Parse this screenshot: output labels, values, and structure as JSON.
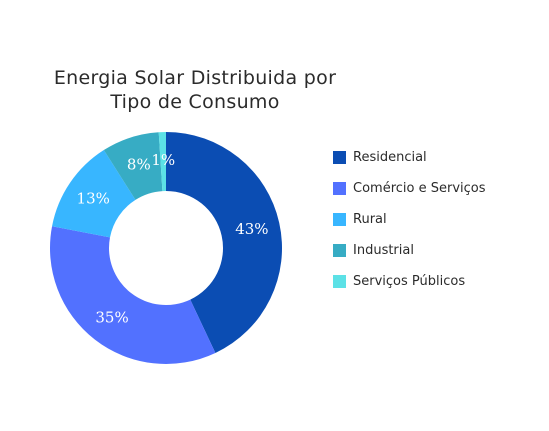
{
  "chart_data": {
    "type": "pie",
    "donut": true,
    "title": [
      "Energia Solar Distribuida por",
      "Tipo de Consumo"
    ],
    "slices": [
      {
        "label": "Residencial",
        "value": 43,
        "display": "43%",
        "color": "#0b4db3"
      },
      {
        "label": "Comércio e Serviços",
        "value": 35,
        "display": "35%",
        "color": "#5271ff"
      },
      {
        "label": "Rural",
        "value": 13,
        "display": "13%",
        "color": "#38b6ff"
      },
      {
        "label": "Industrial",
        "value": 8,
        "display": "8%",
        "color": "#37acc4"
      },
      {
        "label": "Serviços Públicos",
        "value": 1,
        "display": "1%",
        "color": "#5ce1e6"
      }
    ],
    "legend_position": "right"
  }
}
